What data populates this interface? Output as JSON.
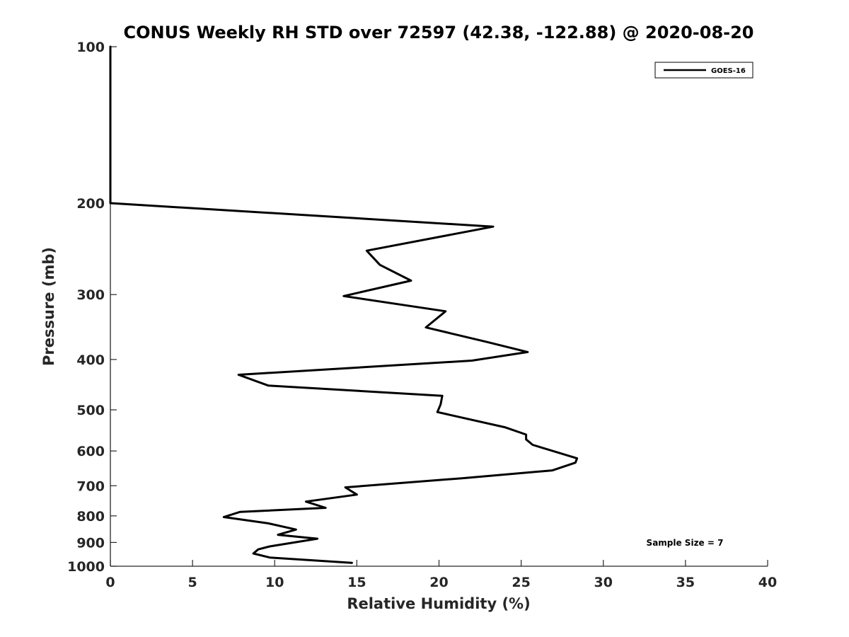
{
  "chart_data": {
    "type": "line",
    "title": "CONUS Weekly RH STD over 72597 (42.38, -122.88) @ 2020-08-20",
    "xlabel": "Relative Humidity (%)",
    "ylabel": "Pressure (mb)",
    "xlim": [
      0,
      40
    ],
    "ylim": [
      100,
      1000
    ],
    "y_scale": "log",
    "y_reversed": true,
    "grid": false,
    "legend_position": "top-right",
    "x_ticks": [
      "0",
      "5",
      "10",
      "15",
      "20",
      "25",
      "30",
      "35",
      "40"
    ],
    "y_ticks": [
      "100",
      "200",
      "300",
      "400",
      "500",
      "600",
      "700",
      "800",
      "900",
      "1000"
    ],
    "annotation": "Sample Size = 7",
    "series": [
      {
        "name": "GOES-16",
        "color": "#000000",
        "x": [
          0,
          0,
          23.3,
          15.6,
          16.4,
          18.3,
          14.2,
          20.4,
          19.2,
          22.9,
          25.4,
          22.0,
          7.8,
          9.6,
          20.2,
          20.1,
          19.9,
          24.0,
          25.3,
          25.3,
          25.7,
          28.4,
          28.3,
          26.9,
          21.4,
          14.3,
          15.0,
          11.9,
          13.1,
          7.9,
          6.9,
          9.6,
          11.3,
          10.2,
          12.6,
          9.7,
          9.0,
          8.7,
          9.7,
          14.7
        ],
        "y": [
          100,
          200,
          222,
          247,
          263,
          282,
          302,
          323,
          347,
          370,
          387,
          402,
          428,
          449,
          470,
          488,
          505,
          540,
          558,
          570,
          584,
          620,
          632,
          654,
          677,
          705,
          728,
          751,
          772,
          786,
          804,
          827,
          850,
          870,
          885,
          916,
          928,
          945,
          962,
          985
        ]
      }
    ]
  }
}
